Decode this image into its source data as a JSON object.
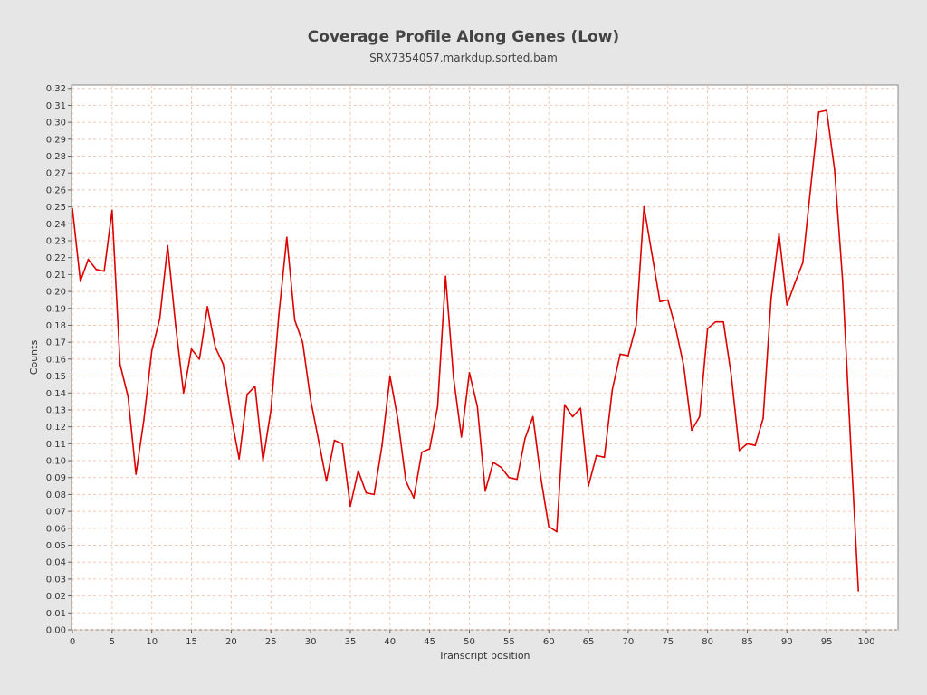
{
  "chart_data": {
    "type": "line",
    "title": "Coverage Profile Along Genes (Low)",
    "subtitle": "SRX7354057.markdup.sorted.bam",
    "xlabel": "Transcript position",
    "ylabel": "Counts",
    "xlim": [
      0,
      104
    ],
    "ylim": [
      0,
      0.322
    ],
    "x_ticks": [
      0,
      5,
      10,
      15,
      20,
      25,
      30,
      35,
      40,
      45,
      50,
      55,
      60,
      65,
      70,
      75,
      80,
      85,
      90,
      95,
      100
    ],
    "y_ticks": [
      "0.00",
      "0.01",
      "0.02",
      "0.03",
      "0.04",
      "0.05",
      "0.06",
      "0.07",
      "0.08",
      "0.09",
      "0.10",
      "0.11",
      "0.12",
      "0.13",
      "0.14",
      "0.15",
      "0.16",
      "0.17",
      "0.18",
      "0.19",
      "0.20",
      "0.21",
      "0.22",
      "0.23",
      "0.24",
      "0.25",
      "0.26",
      "0.27",
      "0.28",
      "0.29",
      "0.30",
      "0.31",
      "0.32"
    ],
    "grid": true,
    "series": [
      {
        "color": "#dd0000",
        "x": [
          0,
          1,
          2,
          3,
          4,
          5,
          6,
          7,
          8,
          9,
          10,
          11,
          12,
          13,
          14,
          15,
          16,
          17,
          18,
          19,
          20,
          21,
          22,
          23,
          24,
          25,
          26,
          27,
          28,
          29,
          30,
          31,
          32,
          33,
          34,
          35,
          36,
          37,
          38,
          39,
          40,
          41,
          42,
          43,
          44,
          45,
          46,
          47,
          48,
          49,
          50,
          51,
          52,
          53,
          54,
          55,
          56,
          57,
          58,
          59,
          60,
          61,
          62,
          63,
          64,
          65,
          66,
          67,
          68,
          69,
          70,
          71,
          72,
          73,
          74,
          75,
          76,
          77,
          78,
          79,
          80,
          81,
          82,
          83,
          84,
          85,
          86,
          87,
          88,
          89,
          90,
          91,
          92,
          93,
          94,
          95,
          96,
          97,
          98,
          99
        ],
        "y": [
          0.249,
          0.206,
          0.219,
          0.213,
          0.212,
          0.248,
          0.157,
          0.138,
          0.092,
          0.124,
          0.165,
          0.184,
          0.227,
          0.18,
          0.14,
          0.166,
          0.16,
          0.191,
          0.167,
          0.157,
          0.126,
          0.101,
          0.139,
          0.144,
          0.1,
          0.13,
          0.186,
          0.232,
          0.183,
          0.17,
          0.136,
          0.112,
          0.088,
          0.112,
          0.11,
          0.073,
          0.094,
          0.081,
          0.08,
          0.109,
          0.15,
          0.124,
          0.088,
          0.078,
          0.105,
          0.107,
          0.132,
          0.209,
          0.149,
          0.114,
          0.152,
          0.132,
          0.082,
          0.099,
          0.096,
          0.09,
          0.089,
          0.113,
          0.126,
          0.09,
          0.061,
          0.058,
          0.133,
          0.126,
          0.131,
          0.085,
          0.103,
          0.102,
          0.142,
          0.163,
          0.162,
          0.18,
          0.25,
          0.222,
          0.194,
          0.195,
          0.178,
          0.156,
          0.118,
          0.126,
          0.178,
          0.182,
          0.182,
          0.15,
          0.106,
          0.11,
          0.109,
          0.125,
          0.196,
          0.234,
          0.192,
          0.205,
          0.217,
          0.262,
          0.306,
          0.307,
          0.272,
          0.207,
          0.112,
          0.023
        ]
      }
    ]
  }
}
